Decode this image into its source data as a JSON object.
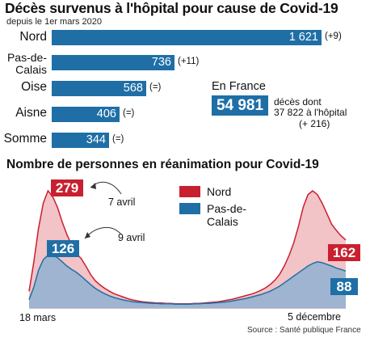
{
  "title": "Décès survenus à l'hôpital pour cause de Covid-19",
  "subtitle": "depuis le 1er mars 2020",
  "deaths_bars": [
    {
      "label": "Nord",
      "value": 1621,
      "value_text": "1 621",
      "change": "(+9)"
    },
    {
      "label": "Pas-de-Calais",
      "value": 736,
      "value_text": "736",
      "change": "(+11)"
    },
    {
      "label": "Oise",
      "value": 568,
      "value_text": "568",
      "change": "(=)"
    },
    {
      "label": "Aisne",
      "value": 406,
      "value_text": "406",
      "change": "(=)"
    },
    {
      "label": "Somme",
      "value": 344,
      "value_text": "344",
      "change": "(=)"
    }
  ],
  "france": {
    "label": "En France",
    "total": "54 981",
    "line1": "décès dont",
    "line2": "37 822 à l'hôpital",
    "line3": "(+ 216)"
  },
  "chart_title": "Nombre de personnes en réanimation pour Covid-19",
  "colors": {
    "blue": "#1f6fa6",
    "red": "#c8202f",
    "red_fill": "#f2c3c7",
    "blue_fill": "#8fb2d1"
  },
  "chart_data": {
    "type": "area",
    "x_start_label": "18 mars",
    "x_end_label": "5 décembre",
    "legend_position": "top-right",
    "ylim": [
      0,
      300
    ],
    "series": [
      {
        "name": "Nord",
        "color": "#c8202f",
        "values": [
          40,
          110,
          190,
          250,
          279,
          265,
          240,
          205,
          175,
          150,
          130,
          118,
          100,
          80,
          65,
          55,
          47,
          40,
          34,
          30,
          26,
          22,
          19,
          17,
          15,
          14,
          13,
          12,
          12,
          11,
          11,
          10,
          10,
          10,
          10,
          11,
          11,
          12,
          13,
          14,
          15,
          17,
          19,
          21,
          24,
          27,
          30,
          33,
          37,
          42,
          48,
          56,
          66,
          80,
          100,
          125,
          155,
          195,
          240,
          270,
          279,
          270,
          250,
          225,
          200,
          185,
          172,
          162
        ]
      },
      {
        "name": "Pas-de-Calais",
        "color": "#1f6fa6",
        "values": [
          20,
          50,
          90,
          115,
          126,
          125,
          120,
          110,
          100,
          92,
          85,
          76,
          66,
          56,
          47,
          40,
          34,
          29,
          25,
          22,
          19,
          17,
          15,
          14,
          13,
          12,
          11,
          11,
          10,
          10,
          10,
          9,
          9,
          9,
          9,
          10,
          10,
          11,
          11,
          12,
          13,
          14,
          15,
          17,
          19,
          21,
          23,
          26,
          29,
          32,
          36,
          40,
          46,
          52,
          60,
          68,
          76,
          84,
          92,
          100,
          106,
          110,
          108,
          104,
          100,
          95,
          92,
          88
        ]
      }
    ],
    "annotations": [
      {
        "value": "279",
        "label": "7 avril",
        "series": "Nord"
      },
      {
        "value": "126",
        "label": "9 avril",
        "series": "Pas-de-Calais"
      },
      {
        "value": "162",
        "series": "Nord"
      },
      {
        "value": "88",
        "series": "Pas-de-Calais"
      }
    ]
  },
  "source": "Source : Santé publique France"
}
